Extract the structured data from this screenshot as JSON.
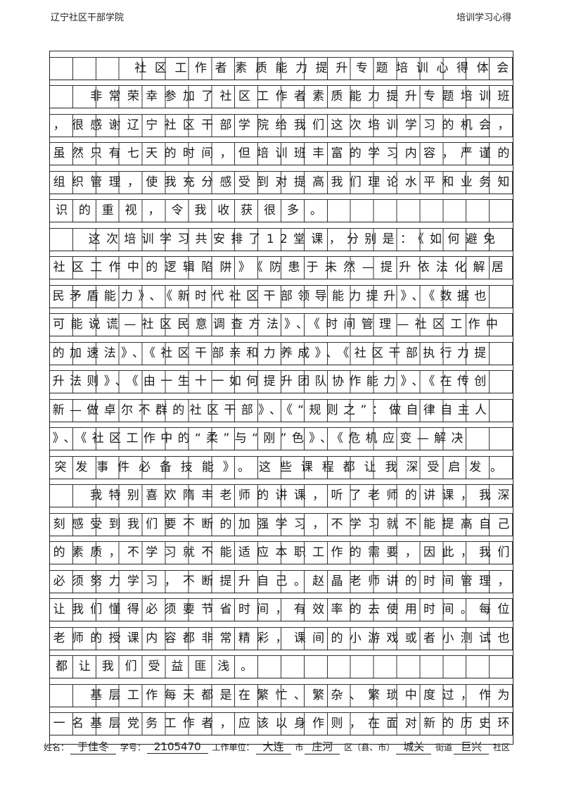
{
  "header": {
    "left": "辽宁社区干部学院",
    "right": "培训学习心得"
  },
  "lines": [
    "　　　　社区工作者素质能力提升专题培训心得体会",
    "　　非常荣幸参加了社区工作者素质能力提升专题培训班",
    "，很感谢辽宁社区干部学院给我们这次培训学习的机会，",
    "虽然只有七天的时间，但培训班丰富的学习内容，严谨的",
    "组织管理，使我充分感受到对提高我们理论水平和业务知",
    "识的重视，令我收获很多。",
    "　　这次培训学习共安排了12堂课，分别是：《如何避免",
    "社区工作中的逻辑陷阱》《防患于未然—提升依法化解居",
    "民矛盾能力》、《新时代社区干部领导能力提升》、《数据也",
    "可能说谎—社区民意调查方法》、《时间管理—社区工作中",
    "的加速法》、《社区干部亲和力养成》、《社区干部执行力提",
    "升法则》、《由一生十一如何提升团队协作能力》、《在传创",
    "新—做卓尔不群的社区干部》、《“规则之”：做自律自主人",
    "》、《社区工作中的“柔”与“刚”色》、《危机应变—解决",
    "突发事件必备技能》。这些课程都让我深受启发。",
    "　　我特别喜欢隋丰老师的讲课，听了老师的讲课，我深",
    "刻感受到我们要不断的加强学习，不学习就不能提高自己",
    "的素质，不学习就不能适应本职工作的需要，因此，我们",
    "必须努力学习，不断提升自己。赵晶老师讲的时间管理，",
    "让我们懂得必须要节省时间，有效率的去使用时间。每位",
    "老师的授课内容都非常精彩，课间的小游戏或者小测试也",
    "都让我们受益匪浅。",
    "　　基层工作每天都是在繁忙、繁杂、繁琐中度过，作为",
    "一名基层党务工作者，应该以身作则，在面对新的历史环"
  ],
  "footer": {
    "name_label": "姓名：",
    "name": "于佳冬",
    "id_label": "学号：",
    "id": "2105470",
    "unit_label": "工作单位：",
    "city": "大连",
    "city_suffix": "市",
    "district": "庄河",
    "district_suffix": "区（县、市）",
    "street": "城关",
    "street_suffix": "街道",
    "community": "巨兴",
    "community_suffix": "社区"
  }
}
